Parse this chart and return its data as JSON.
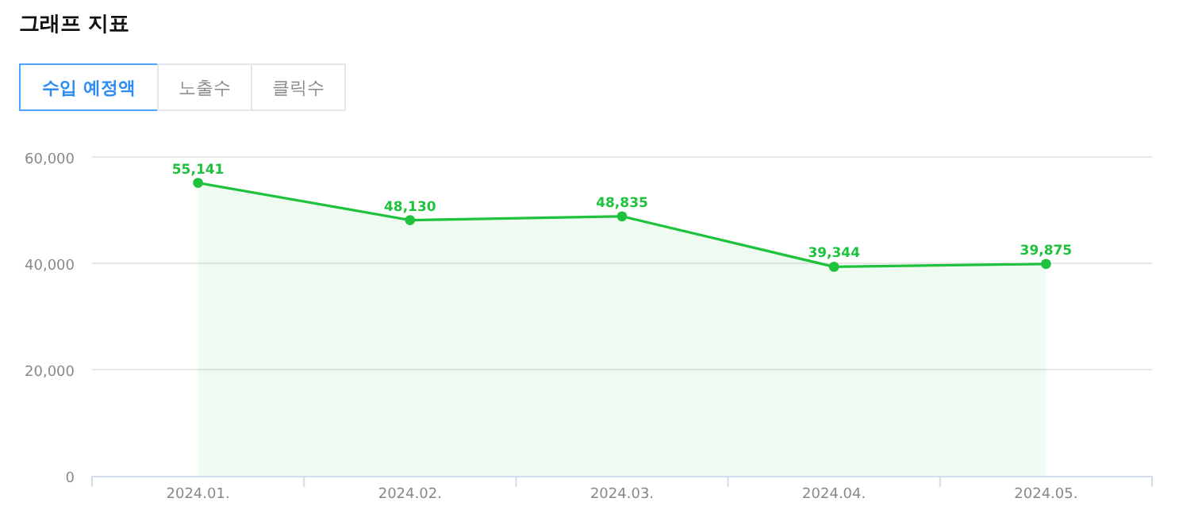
{
  "chart_data": {
    "type": "area",
    "title": "그래프 지표",
    "annotations": [
      "수입 예정액",
      "노출수",
      "클릭수"
    ],
    "categories": [
      "2024.01.",
      "2024.02.",
      "2024.03.",
      "2024.04.",
      "2024.05."
    ],
    "series": [
      {
        "color": "#1ec23c",
        "values": [
          55141,
          48130,
          48835,
          39344,
          39875
        ]
      }
    ],
    "value_labels": [
      "55,141",
      "48,130",
      "48,835",
      "39,344",
      "39,875"
    ],
    "ylim": [
      0,
      60000
    ],
    "yticks": [
      {
        "value": 0,
        "label": "0"
      },
      {
        "value": 20000,
        "label": "20,000"
      },
      {
        "value": 40000,
        "label": "40,000"
      },
      {
        "value": 60000,
        "label": "60,000"
      }
    ],
    "grid": "y",
    "marker": "circle"
  }
}
